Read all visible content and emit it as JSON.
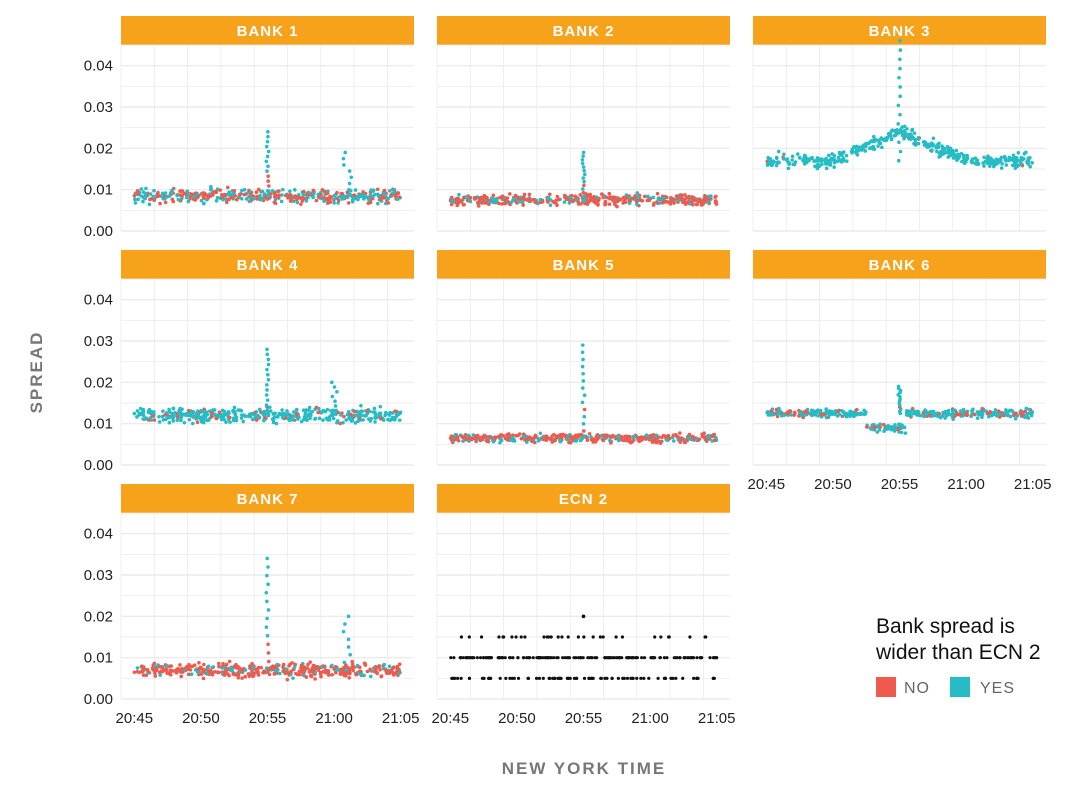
{
  "chart_data": {
    "type": "scatter",
    "layout": "faceted small multiples (3 columns)",
    "xlabel": "NEW YORK TIME",
    "ylabel": "SPREAD",
    "x_ticks": [
      "20:45",
      "20:50",
      "20:55",
      "21:00",
      "21:05"
    ],
    "xlim": [
      "20:44",
      "21:06"
    ],
    "y_ticks": [
      "0.00",
      "0.01",
      "0.02",
      "0.03",
      "0.04"
    ],
    "ylim": [
      0,
      0.045
    ],
    "grid": true,
    "colors": {
      "strip": "#f7a21b",
      "no": "#ef5a4e",
      "yes": "#26bcc5",
      "ecn": "#111111",
      "panel_grid": "#e8e8e8"
    },
    "legend": {
      "title": "Bank spread is wider than ECN 2",
      "title_line1": "Bank spread is",
      "title_line2": "wider than ECN 2",
      "placement": "bottom-right",
      "entries": [
        {
          "label": "NO",
          "color": "#ef5a4e"
        },
        {
          "label": "YES",
          "color": "#26bcc5"
        }
      ]
    },
    "panels": [
      {
        "title": "BANK 1",
        "baseline": 0.0085,
        "spread": 0.0025,
        "yes_fraction": 0.45,
        "spike": 0.024,
        "secondary_spike": [
          "21:01",
          0.019
        ],
        "range": [
          "20:45",
          "21:05"
        ]
      },
      {
        "title": "BANK 2",
        "baseline": 0.0075,
        "spread": 0.002,
        "yes_fraction": 0.25,
        "spike": 0.019,
        "range": [
          "20:45",
          "21:05"
        ]
      },
      {
        "title": "BANK 3",
        "baseline": 0.017,
        "spread": 0.0025,
        "yes_fraction": 0.98,
        "spike": 0.046,
        "hump": [
          0.024,
          "20:55"
        ],
        "range": [
          "20:45",
          "21:05"
        ]
      },
      {
        "title": "BANK 4",
        "baseline": 0.012,
        "spread": 0.0025,
        "yes_fraction": 0.85,
        "spike": 0.028,
        "secondary_spike": [
          "21:00",
          0.02
        ],
        "range": [
          "20:45",
          "21:05"
        ]
      },
      {
        "title": "BANK 5",
        "baseline": 0.0065,
        "spread": 0.0015,
        "yes_fraction": 0.3,
        "spike": 0.029,
        "range": [
          "20:45",
          "21:05"
        ]
      },
      {
        "title": "BANK 6",
        "baseline": 0.0125,
        "spread": 0.0015,
        "yes_fraction": 0.8,
        "spike": 0.019,
        "dip": [
          "20:54",
          0.009
        ],
        "range": [
          "20:45",
          "21:05"
        ]
      },
      {
        "title": "BANK 7",
        "baseline": 0.007,
        "spread": 0.0025,
        "yes_fraction": 0.2,
        "spike": 0.034,
        "secondary_spike": [
          "21:01",
          0.02
        ],
        "range": [
          "20:45",
          "21:05"
        ]
      },
      {
        "title": "ECN 2",
        "levels": [
          0.005,
          0.01,
          0.015,
          0.02
        ],
        "color": "#111111",
        "range": [
          "20:45",
          "21:05"
        ]
      }
    ]
  }
}
